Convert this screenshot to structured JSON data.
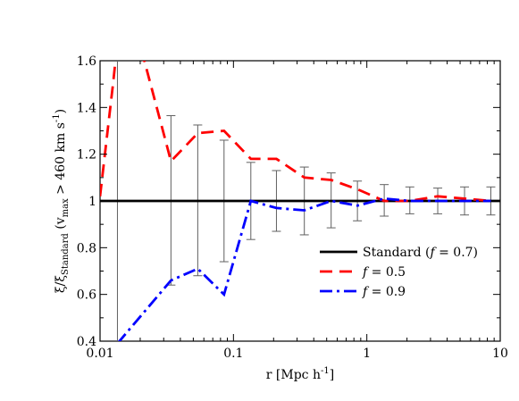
{
  "chart_data": {
    "type": "line",
    "xlabel_main": "r [Mpc h",
    "xlabel_sup": "-1",
    "xlabel_end": "]",
    "ylabel_main": "ξ/ξ",
    "ylabel_sub": "Standard",
    "ylabel_mid": " (v",
    "ylabel_sub2": "max",
    "ylabel_mid2": " > 460 km s",
    "ylabel_sup": "-1",
    "ylabel_end": ")",
    "xscale": "log",
    "xlim": [
      0.01,
      10
    ],
    "ylim": [
      0.4,
      1.6
    ],
    "x_ticks": [
      0.01,
      0.1,
      1,
      10
    ],
    "x_tick_labels": [
      "0.01",
      "0.1",
      "1",
      "10"
    ],
    "y_ticks": [
      0.4,
      0.6,
      0.8,
      1.0,
      1.2,
      1.4,
      1.6
    ],
    "y_tick_labels": [
      "0.4",
      "0.6",
      "0.8",
      "1",
      "1.2",
      "1.4",
      "1.6"
    ],
    "legend_position": "lower-right",
    "series": [
      {
        "name": "Standard (f = 0.7)",
        "legend_prefix": "Standard (",
        "legend_italic": "f",
        "legend_suffix": " = 0.7)",
        "color": "#000000",
        "style": "solid",
        "x": [
          0.01,
          10
        ],
        "y": [
          1.0,
          1.0
        ]
      },
      {
        "name": "f = 0.5",
        "legend_prefix": "",
        "legend_italic": "f",
        "legend_suffix": " = 0.5",
        "color": "#ff0000",
        "style": "dashed",
        "x": [
          0.01,
          0.0125,
          0.0135,
          0.0215,
          0.034,
          0.054,
          0.085,
          0.135,
          0.21,
          0.34,
          0.54,
          0.85,
          1.35,
          2.1,
          3.4,
          5.4,
          8.5
        ],
        "y": [
          1.02,
          1.5,
          1.68,
          1.6,
          1.17,
          1.29,
          1.3,
          1.18,
          1.18,
          1.1,
          1.09,
          1.05,
          1.0,
          1.0,
          1.02,
          1.01,
          1.0
        ]
      },
      {
        "name": "f = 0.9",
        "legend_prefix": "",
        "legend_italic": "f",
        "legend_suffix": " = 0.9",
        "color": "#0000ff",
        "style": "dashdot",
        "x": [
          0.0135,
          0.034,
          0.054,
          0.085,
          0.135,
          0.21,
          0.34,
          0.54,
          0.85,
          1.35,
          2.1,
          3.4,
          5.4,
          8.5
        ],
        "y": [
          0.39,
          0.66,
          0.71,
          0.6,
          1.0,
          0.97,
          0.96,
          1.0,
          0.98,
          1.01,
          1.0,
          1.0,
          1.0,
          1.0
        ]
      }
    ],
    "error_bars": {
      "color": "#606060",
      "x": [
        0.0135,
        0.034,
        0.054,
        0.085,
        0.135,
        0.21,
        0.34,
        0.54,
        0.85,
        1.35,
        2.1,
        3.4,
        5.4,
        8.5
      ],
      "lower": [
        0.2,
        0.64,
        0.68,
        0.74,
        0.835,
        0.87,
        0.855,
        0.885,
        0.915,
        0.935,
        0.945,
        0.945,
        0.94,
        0.94
      ],
      "upper": [
        1.8,
        1.365,
        1.325,
        1.26,
        1.165,
        1.13,
        1.145,
        1.12,
        1.085,
        1.07,
        1.06,
        1.055,
        1.06,
        1.06
      ]
    }
  }
}
